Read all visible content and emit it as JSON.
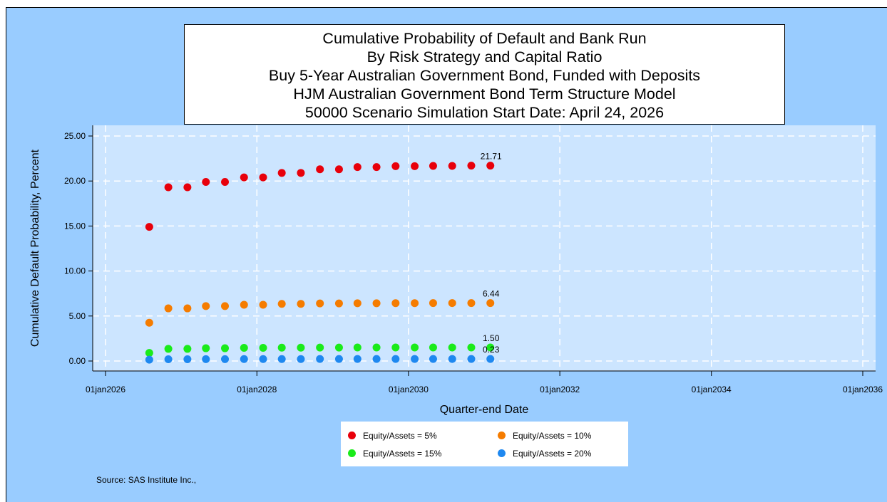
{
  "title_lines": [
    "Cumulative Probability of Default and Bank Run",
    "By Risk Strategy and Capital Ratio",
    "Buy 5-Year Australian Government Bond, Funded with Deposits",
    "HJM Australian Government Bond Term Structure Model",
    "50000 Scenario Simulation Start Date: April 24, 2026"
  ],
  "source": "Source: SAS Institute Inc.,",
  "legend": [
    {
      "label": "Equity/Assets = 5%",
      "color": "#e8000b"
    },
    {
      "label": "Equity/Assets = 10%",
      "color": "#f57c00"
    },
    {
      "label": "Equity/Assets = 15%",
      "color": "#1aeb1a"
    },
    {
      "label": "Equity/Assets = 20%",
      "color": "#1e88f0"
    }
  ],
  "chart_data": {
    "type": "scatter",
    "title": "Cumulative Probability of Default and Bank Run",
    "xlabel": "Quarter-end Date",
    "ylabel": "Cumulative Default Probability, Percent",
    "x_axis": "date",
    "xlim": [
      "2026-01-01",
      "2036-01-01"
    ],
    "ylim": [
      0,
      25
    ],
    "y_ticks": [
      "0.00",
      "5.00",
      "10.00",
      "15.00",
      "20.00",
      "25.00"
    ],
    "x_ticks": [
      {
        "date": "2026-01-01",
        "label": "01jan2026"
      },
      {
        "date": "2028-01-01",
        "label": "01jan2028"
      },
      {
        "date": "2030-01-01",
        "label": "01jan2030"
      },
      {
        "date": "2032-01-01",
        "label": "01jan2032"
      },
      {
        "date": "2034-01-01",
        "label": "01jan2034"
      },
      {
        "date": "2036-01-01",
        "label": "01jan2036"
      }
    ],
    "grid": true,
    "x": [
      "2026-07-31",
      "2026-10-31",
      "2027-01-31",
      "2027-04-30",
      "2027-07-31",
      "2027-10-31",
      "2028-01-31",
      "2028-04-30",
      "2028-07-31",
      "2028-10-31",
      "2029-01-31",
      "2029-04-30",
      "2029-07-31",
      "2029-10-31",
      "2030-01-31",
      "2030-04-30",
      "2030-07-31",
      "2030-10-31",
      "2031-01-31"
    ],
    "series": [
      {
        "name": "Equity/Assets = 5%",
        "color": "#e8000b",
        "end_label": "21.71",
        "values": [
          14.9,
          19.3,
          19.3,
          19.9,
          19.9,
          20.4,
          20.4,
          20.9,
          20.9,
          21.3,
          21.3,
          21.55,
          21.55,
          21.65,
          21.65,
          21.68,
          21.68,
          21.71,
          21.71
        ]
      },
      {
        "name": "Equity/Assets = 10%",
        "color": "#f57c00",
        "end_label": "6.44",
        "values": [
          4.25,
          5.85,
          5.85,
          6.1,
          6.1,
          6.25,
          6.25,
          6.35,
          6.35,
          6.4,
          6.4,
          6.42,
          6.42,
          6.43,
          6.43,
          6.44,
          6.44,
          6.44,
          6.44
        ]
      },
      {
        "name": "Equity/Assets = 15%",
        "color": "#1aeb1a",
        "end_label": "1.50",
        "values": [
          0.9,
          1.35,
          1.35,
          1.42,
          1.42,
          1.46,
          1.46,
          1.48,
          1.48,
          1.49,
          1.49,
          1.5,
          1.5,
          1.5,
          1.5,
          1.5,
          1.5,
          1.5,
          1.5
        ]
      },
      {
        "name": "Equity/Assets = 20%",
        "color": "#1e88f0",
        "end_label": "0.23",
        "values": [
          0.15,
          0.2,
          0.2,
          0.21,
          0.21,
          0.22,
          0.22,
          0.22,
          0.22,
          0.23,
          0.23,
          0.23,
          0.23,
          0.23,
          0.23,
          0.23,
          0.23,
          0.23,
          0.23
        ]
      }
    ]
  }
}
